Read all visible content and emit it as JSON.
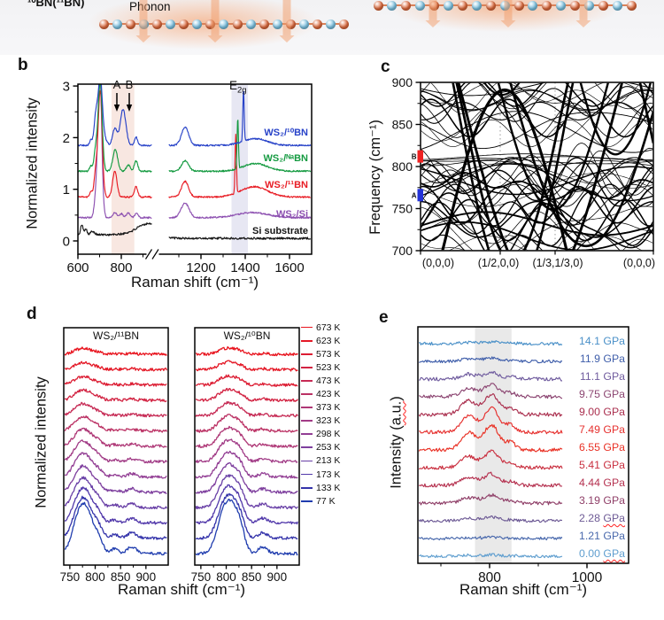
{
  "panels": {
    "a": {
      "bn_label": "¹⁰BN(¹¹BN)",
      "phonon_label": "Phonon",
      "boron_color": "#e06a3c",
      "nitrogen_color": "#7cc4e4",
      "arrow_color": "rgba(242,158,108,0.5)"
    },
    "b": {
      "letter": "b"
    },
    "c": {
      "letter": "c"
    },
    "d": {
      "letter": "d"
    },
    "e": {
      "letter": "e"
    }
  },
  "chart_data": [
    {
      "id": "b",
      "type": "line",
      "xlabel": "Raman shift (cm⁻¹)",
      "ylabel": "Normalized intensity",
      "xlim": [
        600,
        1700
      ],
      "x_break": [
        945,
        1055
      ],
      "ylim": [
        0,
        3
      ],
      "yticks": [
        0,
        1,
        2,
        3
      ],
      "xticks": [
        600,
        800,
        1200,
        1400,
        1600
      ],
      "xticks_minor": [
        700,
        900,
        1100,
        1300,
        1500
      ],
      "shaded_bands": [
        {
          "x0": 755,
          "x1": 860,
          "color": "#f8e7e1"
        },
        {
          "x0": 1338,
          "x1": 1412,
          "color": "#e7e7f3"
        }
      ],
      "annotations": {
        "peak_a": "A",
        "peak_b": "B",
        "e2g_base": "E",
        "e2g_sub": "2g"
      },
      "series": [
        {
          "name": "WS₂/¹⁰BN",
          "color": "#2742c8",
          "offset": 1.85,
          "label_y": 143,
          "noise": 0.015,
          "peaks": [
            [
              660,
              6,
              0.1
            ],
            [
              683,
              8,
              0.5
            ],
            [
              703,
              9,
              0.95
            ],
            [
              705,
              16,
              0.35
            ],
            [
              770,
              10,
              0.33
            ],
            [
              808,
              13,
              0.7
            ],
            [
              868,
              7,
              0.16
            ],
            [
              1128,
              16,
              0.36
            ],
            [
              1392,
              3,
              1.0
            ],
            [
              1445,
              55,
              0.13
            ]
          ]
        },
        {
          "name": "WS₂/ᴺᵃBN",
          "color": "#149a40",
          "offset": 1.35,
          "label_y": 173,
          "noise": 0.015,
          "peaks": [
            [
              660,
              6,
              0.1
            ],
            [
              683,
              8,
              0.45
            ],
            [
              703,
              9,
              1.7
            ],
            [
              772,
              11,
              0.42
            ],
            [
              832,
              9,
              0.12
            ],
            [
              868,
              8,
              0.2
            ],
            [
              1128,
              16,
              0.2
            ],
            [
              1366,
              3,
              0.98
            ],
            [
              1445,
              55,
              0.15
            ]
          ]
        },
        {
          "name": "WS₂/¹¹BN",
          "color": "#e81c24",
          "offset": 0.85,
          "label_y": 203,
          "noise": 0.015,
          "peaks": [
            [
              660,
              6,
              0.1
            ],
            [
              683,
              8,
              0.5
            ],
            [
              703,
              9,
              2.05
            ],
            [
              770,
              10,
              0.5
            ],
            [
              868,
              8,
              0.2
            ],
            [
              1128,
              16,
              0.3
            ],
            [
              1357,
              3,
              1.15
            ],
            [
              1440,
              60,
              0.2
            ]
          ]
        },
        {
          "name": "WS₂/Si",
          "color": "#8c4fb0",
          "offset": 0.45,
          "label_y": 236,
          "noise": 0.015,
          "peaks": [
            [
              683,
              8,
              0.35
            ],
            [
              701,
              9,
              2.75
            ],
            [
              770,
              9,
              0.1
            ],
            [
              800,
              8,
              0.08
            ],
            [
              832,
              8,
              0.1
            ],
            [
              870,
              8,
              0.08
            ],
            [
              1128,
              18,
              0.28
            ],
            [
              1430,
              70,
              0.1
            ]
          ]
        },
        {
          "name": "Si substrate",
          "color": "#161616",
          "offset": 0.12,
          "offset_right": 0.05,
          "label_y": 255,
          "noise": 0.02,
          "peaks": [
            [
              618,
              5,
              0.2
            ],
            [
              636,
              6,
              0.12
            ],
            [
              668,
              9,
              0.07
            ],
            [
              930,
              55,
              0.22
            ]
          ]
        }
      ]
    },
    {
      "id": "c",
      "type": "dispersion",
      "ylabel": "Frequency (cm⁻¹)",
      "ylim": [
        700,
        900
      ],
      "yticks": [
        700,
        750,
        800,
        850,
        900
      ],
      "xticklabels": [
        "(0,0,0)",
        "(1/2,0,0)",
        "(1/3,1/3,0)",
        "(0,0,0)"
      ],
      "markers": [
        {
          "text": "B",
          "freq": 812,
          "color": "#ee2222"
        },
        {
          "text": "A",
          "freq": 766,
          "color": "#2433d8"
        }
      ],
      "band_color": "#000000"
    },
    {
      "id": "d",
      "type": "line-stack",
      "xlabel": "Raman shift (cm⁻¹)",
      "ylabel": "Normalized intensity",
      "xlim": [
        738,
        944
      ],
      "xticks": [
        750,
        800,
        850,
        900
      ],
      "xticks_minor": [
        775,
        825,
        875
      ],
      "panels": [
        {
          "title": "WS₂/¹¹BN",
          "components": [
            [
              768,
              13,
              0.95
            ],
            [
              786,
              12,
              0.8
            ],
            [
              806,
              9,
              0.35
            ],
            [
              838,
              7,
              0.12
            ],
            [
              872,
              9,
              0.18
            ]
          ]
        },
        {
          "title": "WS₂/¹⁰BN",
          "components": [
            [
              793,
              13,
              0.85
            ],
            [
              812,
              13,
              1.0
            ],
            [
              828,
              9,
              0.45
            ],
            [
              872,
              9,
              0.18
            ]
          ]
        }
      ],
      "temperatures": [
        {
          "label": "673 K",
          "color": "#e8141e",
          "amp": 5
        },
        {
          "label": "623 K",
          "color": "#e41826",
          "amp": 6
        },
        {
          "label": "573 K",
          "color": "#dc1c32",
          "amp": 7
        },
        {
          "label": "523 K",
          "color": "#d22342",
          "amp": 8.5
        },
        {
          "label": "473 K",
          "color": "#c62a54",
          "amp": 10
        },
        {
          "label": "423 K",
          "color": "#bb3164",
          "amp": 12
        },
        {
          "label": "373 K",
          "color": "#ae3776",
          "amp": 14.5
        },
        {
          "label": "323 K",
          "color": "#a13b86",
          "amp": 17
        },
        {
          "label": "298 K",
          "color": "#923e94",
          "amp": 19.5
        },
        {
          "label": "253 K",
          "color": "#7e3f9e",
          "amp": 22
        },
        {
          "label": "213 K",
          "color": "#683fa6",
          "amp": 25
        },
        {
          "label": "173 K",
          "color": "#5138aa",
          "amp": 29
        },
        {
          "label": "133 K",
          "color": "#3433aa",
          "amp": 34
        },
        {
          "label": "77 K",
          "color": "#1f3cae",
          "amp": 42
        }
      ]
    },
    {
      "id": "e",
      "type": "line-stack",
      "xlabel": "Raman shift (cm⁻¹)",
      "ylabel_pre": "Intensity (",
      "ylabel_mis": "a.u.",
      "ylabel_post": ")",
      "xlim": [
        653,
        1085
      ],
      "xticks": [
        800,
        1000
      ],
      "xticks_minor": [
        700,
        900
      ],
      "shaded_band": {
        "x0": 770,
        "x1": 845,
        "color": "#e9e9e9"
      },
      "components": [
        [
          757,
          16,
          0.7
        ],
        [
          804,
          15,
          1.0
        ],
        [
          843,
          11,
          0.3
        ]
      ],
      "pressures": [
        {
          "value": "14.1",
          "unit": "GPa",
          "color": "#4a90c8",
          "amp": 2,
          "misspelled": false
        },
        {
          "value": "11.9",
          "unit": "GPa",
          "color": "#3f5eaa",
          "amp": 4,
          "misspelled": false
        },
        {
          "value": "11.1",
          "unit": "GPa",
          "color": "#6f5b9e",
          "amp": 8,
          "misspelled": false
        },
        {
          "value": "9.75",
          "unit": "GPa",
          "color": "#8c4672",
          "amp": 14,
          "misspelled": false
        },
        {
          "value": "9.00",
          "unit": "GPa",
          "color": "#aa2f4e",
          "amp": 22,
          "misspelled": false
        },
        {
          "value": "7.49",
          "unit": "GPa",
          "color": "#e6302e",
          "amp": 27,
          "misspelled": false
        },
        {
          "value": "6.55",
          "unit": "GPa",
          "color": "#e93125",
          "amp": 28,
          "misspelled": false
        },
        {
          "value": "5.41",
          "unit": "GPa",
          "color": "#c92f3f",
          "amp": 18,
          "misspelled": false
        },
        {
          "value": "4.44",
          "unit": "GPa",
          "color": "#b53250",
          "amp": 13,
          "misspelled": false
        },
        {
          "value": "3.19",
          "unit": "GPa",
          "color": "#8f3f68",
          "amp": 9,
          "misspelled": false
        },
        {
          "value": "2.28",
          "unit": "GPa",
          "color": "#6d5a95",
          "amp": 4,
          "misspelled": true
        },
        {
          "value": "1.21",
          "unit": "GPa",
          "color": "#4868ac",
          "amp": 1.5,
          "misspelled": false
        },
        {
          "value": "0.00",
          "unit": "GPa",
          "color": "#5f9ecf",
          "amp": 1.5,
          "misspelled": true
        }
      ]
    }
  ]
}
